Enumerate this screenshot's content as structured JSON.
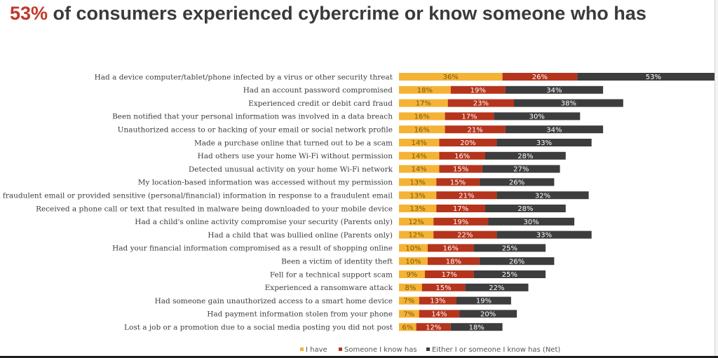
{
  "page": {
    "title_accent": "53%",
    "title_rest": " of consumers experienced cybercrime or know someone who has"
  },
  "chart_data": {
    "type": "bar",
    "orientation": "horizontal",
    "stacked": true,
    "title": "53% of consumers experienced cybercrime or know someone who has",
    "xlabel": "",
    "ylabel": "",
    "value_format": "percent",
    "categories": [
      "Had a device computer/tablet/phone infected by a virus or other security threat",
      "Had an account password compromised",
      "Experienced credit or debit card fraud",
      "Been notified that your personal information was involved in a data breach",
      "Unauthorized access to or hacking of your email or social network profile",
      "Made a purchase online that turned out to be a scam",
      "Had others use your home Wi-Fi without permission",
      "Detected unusual activity on your home Wi-Fi network",
      "My location-based information was accessed without my permission",
      "Clicked on a fraudulent email or provided sensitive (personal/financial) information in response to a fraudulent email",
      "Received a phone call or text that resulted in malware being downloaded to your mobile device",
      "Had a child's online activity compromise your security (Parents only)",
      "Had a child that was bullied online (Parents only)",
      "Had your financial information compromised as a result of shopping online",
      "Been a victim of identity theft",
      "Fell for a technical support scam",
      "Experienced a ransomware attack",
      "Had someone gain unauthorized access to a smart home device",
      "Had payment information stolen from your phone",
      "Lost a job or a promotion due to a social media posting you did not post"
    ],
    "series": [
      {
        "name": "I have",
        "color": "#f5b335",
        "label_color": "#7a5a10",
        "values": [
          36,
          18,
          17,
          16,
          16,
          14,
          14,
          14,
          13,
          13,
          13,
          12,
          12,
          10,
          10,
          9,
          8,
          7,
          7,
          6
        ]
      },
      {
        "name": "Someone I know has",
        "color": "#b5341c",
        "label_color": "#ffffff",
        "values": [
          26,
          19,
          23,
          17,
          21,
          20,
          16,
          15,
          15,
          21,
          17,
          19,
          22,
          16,
          18,
          17,
          15,
          13,
          14,
          12
        ]
      },
      {
        "name": "Either I or someone I know has (Net)",
        "color": "#3d3d3d",
        "label_color": "#ffffff",
        "values": [
          53,
          34,
          38,
          30,
          34,
          33,
          28,
          27,
          26,
          32,
          28,
          30,
          33,
          25,
          26,
          25,
          22,
          19,
          20,
          18
        ]
      }
    ],
    "legend_position": "bottom",
    "grid": false
  }
}
